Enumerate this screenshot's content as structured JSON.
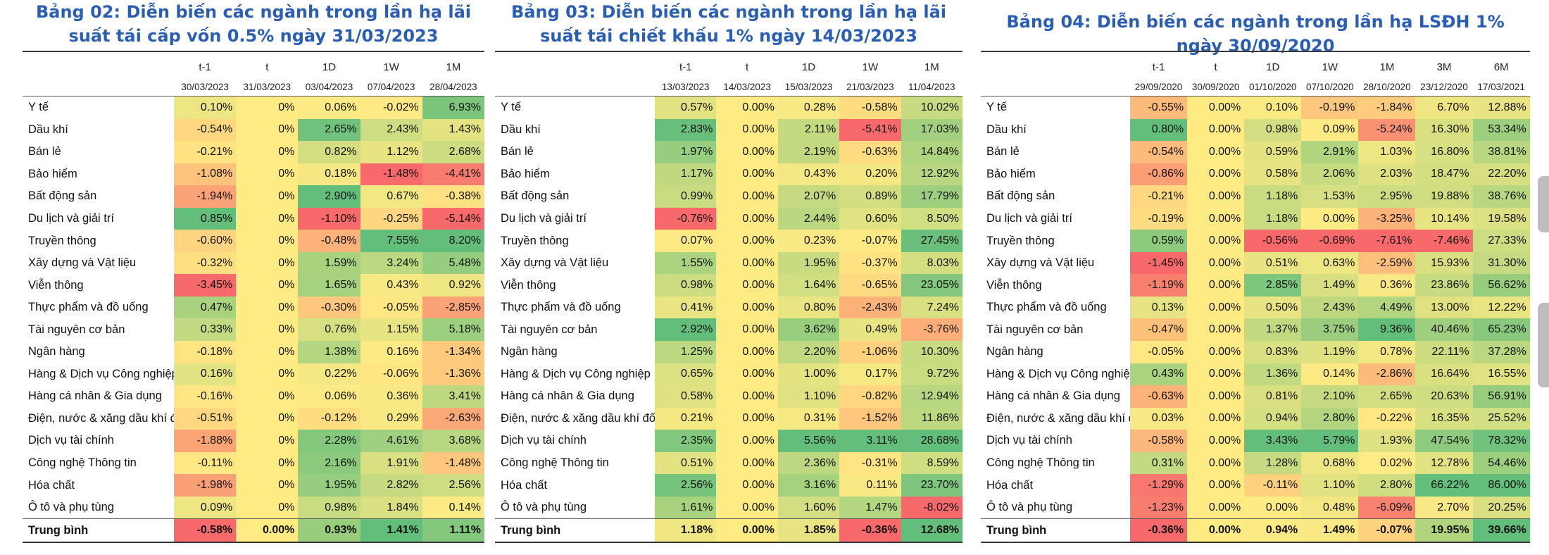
{
  "colors": {
    "title": "#2a5db4",
    "negative": "#f8696b",
    "neutral": "#ffeb84",
    "positive": "#63be7b"
  },
  "industries": [
    "Y tế",
    "Dầu khí",
    "Bán lẻ",
    "Bảo hiểm",
    "Bất động sản",
    "Du lịch và giải trí",
    "Truyền thông",
    "Xây dựng và Vật liệu",
    "Viễn thông",
    "Thực phẩm và đồ uống",
    "Tài nguyên cơ bản",
    "Ngân hàng",
    "Hàng & Dịch vụ Công nghiệp",
    "Hàng cá nhân & Gia dụng",
    "Điện, nước & xăng dầu khí đốt",
    "Dịch vụ tài chính",
    "Công nghệ Thông tin",
    "Hóa chất",
    "Ô tô và phụ tùng"
  ],
  "tables": [
    {
      "title": "Bảng 02: Diễn biến các ngành trong lần hạ lãi suất tái cấp vốn 0.5% ngày 31/03/2023",
      "headers": [
        "t-1",
        "t",
        "1D",
        "1W",
        "1M"
      ],
      "dates": [
        "30/03/2023",
        "31/03/2023",
        "03/04/2023",
        "07/04/2023",
        "28/04/2023"
      ],
      "rows": [
        [
          "0.10%",
          "0%",
          "0.06%",
          "-0.02%",
          "6.93%"
        ],
        [
          "-0.54%",
          "0%",
          "2.65%",
          "2.43%",
          "1.43%"
        ],
        [
          "-0.21%",
          "0%",
          "0.82%",
          "1.12%",
          "2.68%"
        ],
        [
          "-1.08%",
          "0%",
          "0.18%",
          "-1.48%",
          "-4.41%"
        ],
        [
          "-1.94%",
          "0%",
          "2.90%",
          "0.67%",
          "-0.38%"
        ],
        [
          "0.85%",
          "0%",
          "-1.10%",
          "-0.25%",
          "-5.14%"
        ],
        [
          "-0.60%",
          "0%",
          "-0.48%",
          "7.55%",
          "8.20%"
        ],
        [
          "-0.32%",
          "0%",
          "1.59%",
          "3.24%",
          "5.48%"
        ],
        [
          "-3.45%",
          "0%",
          "1.65%",
          "0.43%",
          "0.92%"
        ],
        [
          "0.47%",
          "0%",
          "-0.30%",
          "-0.05%",
          "-2.85%"
        ],
        [
          "0.33%",
          "0%",
          "0.76%",
          "1.15%",
          "5.18%"
        ],
        [
          "-0.18%",
          "0%",
          "1.38%",
          "0.16%",
          "-1.34%"
        ],
        [
          "0.16%",
          "0%",
          "0.22%",
          "-0.06%",
          "-1.36%"
        ],
        [
          "-0.16%",
          "0%",
          "0.06%",
          "0.36%",
          "3.41%"
        ],
        [
          "-0.51%",
          "0%",
          "-0.12%",
          "0.29%",
          "-2.63%"
        ],
        [
          "-1.88%",
          "0%",
          "2.28%",
          "4.61%",
          "3.68%"
        ],
        [
          "-0.11%",
          "0%",
          "2.16%",
          "1.91%",
          "-1.48%"
        ],
        [
          "-1.98%",
          "0%",
          "1.95%",
          "2.82%",
          "2.56%"
        ],
        [
          "0.09%",
          "0%",
          "0.98%",
          "1.84%",
          "0.14%"
        ]
      ],
      "average_label": "Trung bình",
      "average": [
        "-0.58%",
        "0.00%",
        "0.93%",
        "1.41%",
        "1.11%"
      ]
    },
    {
      "title": "Bảng 03: Diễn biến các ngành trong lần hạ lãi suất tái chiết khấu 1% ngày 14/03/2023",
      "headers": [
        "t-1",
        "t",
        "1D",
        "1W",
        "1M"
      ],
      "dates": [
        "13/03/2023",
        "14/03/2023",
        "15/03/2023",
        "21/03/2023",
        "11/04/2023"
      ],
      "rows": [
        [
          "0.57%",
          "0.00%",
          "0.28%",
          "-0.58%",
          "10.02%"
        ],
        [
          "2.83%",
          "0.00%",
          "2.11%",
          "-5.41%",
          "17.03%"
        ],
        [
          "1.97%",
          "0.00%",
          "2.19%",
          "-0.63%",
          "14.84%"
        ],
        [
          "1.17%",
          "0.00%",
          "0.43%",
          "0.20%",
          "12.92%"
        ],
        [
          "0.99%",
          "0.00%",
          "2.07%",
          "0.89%",
          "17.79%"
        ],
        [
          "-0.76%",
          "0.00%",
          "2.44%",
          "0.60%",
          "8.50%"
        ],
        [
          "0.07%",
          "0.00%",
          "0.23%",
          "-0.07%",
          "27.45%"
        ],
        [
          "1.55%",
          "0.00%",
          "1.95%",
          "-0.37%",
          "8.03%"
        ],
        [
          "0.98%",
          "0.00%",
          "1.64%",
          "-0.65%",
          "23.05%"
        ],
        [
          "0.41%",
          "0.00%",
          "0.80%",
          "-2.43%",
          "7.24%"
        ],
        [
          "2.92%",
          "0.00%",
          "3.62%",
          "0.49%",
          "-3.76%"
        ],
        [
          "1.25%",
          "0.00%",
          "2.20%",
          "-1.06%",
          "10.30%"
        ],
        [
          "0.65%",
          "0.00%",
          "1.00%",
          "0.17%",
          "9.72%"
        ],
        [
          "0.58%",
          "0.00%",
          "1.10%",
          "-0.82%",
          "12.94%"
        ],
        [
          "0.21%",
          "0.00%",
          "0.31%",
          "-1.52%",
          "11.86%"
        ],
        [
          "2.35%",
          "0.00%",
          "5.56%",
          "3.11%",
          "28.68%"
        ],
        [
          "0.51%",
          "0.00%",
          "2.36%",
          "-0.31%",
          "8.59%"
        ],
        [
          "2.56%",
          "0.00%",
          "3.16%",
          "0.11%",
          "23.70%"
        ],
        [
          "1.61%",
          "0.00%",
          "1.60%",
          "1.47%",
          "-8.02%"
        ]
      ],
      "average_label": "Trung bình",
      "average": [
        "1.18%",
        "0.00%",
        "1.85%",
        "-0.36%",
        "12.68%"
      ]
    },
    {
      "title": "Bảng 04: Diễn biến các ngành trong lần hạ LSĐH 1% ngày 30/09/2020",
      "headers": [
        "t-1",
        "t",
        "1D",
        "1W",
        "1M",
        "3M",
        "6M"
      ],
      "dates": [
        "29/09/2020",
        "30/09/2020",
        "01/10/2020",
        "07/10/2020",
        "28/10/2020",
        "23/12/2020",
        "17/03/2021"
      ],
      "rows": [
        [
          "-0.55%",
          "0.00%",
          "0.10%",
          "-0.19%",
          "-1.84%",
          "6.70%",
          "12.88%"
        ],
        [
          "0.80%",
          "0.00%",
          "0.98%",
          "0.09%",
          "-5.24%",
          "16.30%",
          "53.34%"
        ],
        [
          "-0.54%",
          "0.00%",
          "0.59%",
          "2.91%",
          "1.03%",
          "16.80%",
          "38.81%"
        ],
        [
          "-0.86%",
          "0.00%",
          "0.58%",
          "2.06%",
          "2.03%",
          "18.47%",
          "22.20%"
        ],
        [
          "-0.21%",
          "0.00%",
          "1.18%",
          "1.53%",
          "2.95%",
          "19.88%",
          "38.76%"
        ],
        [
          "-0.19%",
          "0.00%",
          "1.18%",
          "0.00%",
          "-3.25%",
          "10.14%",
          "19.58%"
        ],
        [
          "0.59%",
          "0.00%",
          "-0.56%",
          "-0.69%",
          "-7.61%",
          "-7.46%",
          "27.33%"
        ],
        [
          "-1.45%",
          "0.00%",
          "0.51%",
          "0.63%",
          "-2.59%",
          "15.93%",
          "31.30%"
        ],
        [
          "-1.19%",
          "0.00%",
          "2.85%",
          "1.49%",
          "0.36%",
          "23.86%",
          "56.62%"
        ],
        [
          "0.13%",
          "0.00%",
          "0.50%",
          "2.43%",
          "4.49%",
          "13.00%",
          "12.22%"
        ],
        [
          "-0.47%",
          "0.00%",
          "1.37%",
          "3.75%",
          "9.36%",
          "40.46%",
          "65.23%"
        ],
        [
          "-0.05%",
          "0.00%",
          "0.83%",
          "1.19%",
          "0.78%",
          "22.11%",
          "37.28%"
        ],
        [
          "0.43%",
          "0.00%",
          "1.36%",
          "0.14%",
          "-2.86%",
          "16.64%",
          "16.55%"
        ],
        [
          "-0.63%",
          "0.00%",
          "0.81%",
          "2.10%",
          "2.65%",
          "20.63%",
          "56.91%"
        ],
        [
          "0.03%",
          "0.00%",
          "0.94%",
          "2.80%",
          "-0.22%",
          "16.35%",
          "25.52%"
        ],
        [
          "-0.58%",
          "0.00%",
          "3.43%",
          "5.79%",
          "1.93%",
          "47.54%",
          "78.32%"
        ],
        [
          "0.31%",
          "0.00%",
          "1.28%",
          "0.68%",
          "0.02%",
          "12.78%",
          "54.46%"
        ],
        [
          "-1.29%",
          "0.00%",
          "-0.11%",
          "1.10%",
          "2.80%",
          "66.22%",
          "86.00%"
        ],
        [
          "-1.23%",
          "0.00%",
          "0.00%",
          "0.48%",
          "-6.09%",
          "2.70%",
          "20.25%"
        ]
      ],
      "average_label": "Trung bình",
      "average": [
        "-0.36%",
        "0.00%",
        "0.94%",
        "1.49%",
        "-0.07%",
        "19.95%",
        "39.66%"
      ]
    }
  ]
}
